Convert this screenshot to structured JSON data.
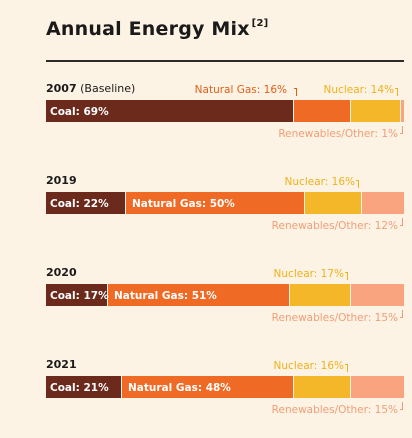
{
  "title": "Annual Energy Mix",
  "title_note": "[2]",
  "chart_data": {
    "type": "bar",
    "stacked": true,
    "orientation": "horizontal",
    "colors": {
      "coal": "#6b2a1c",
      "gas": "#ef6a24",
      "nuclear": "#f4b72a",
      "renewables": "#f9a47e",
      "text_on_bar": "#ffffff",
      "gas_text": "#e35f19",
      "nuclear_text": "#efb11c",
      "renewables_text": "#f09e79"
    },
    "rows": [
      {
        "year": "2007",
        "note": "(Baseline)",
        "values": {
          "coal": 69,
          "gas": 16,
          "nuclear": 14,
          "renewables": 1
        },
        "labels": {
          "coal": "Coal: 69%",
          "gas": "Natural Gas: 16%",
          "nuclear": "Nuclear: 14%",
          "renewables": "Renewables/Other: 1%"
        }
      },
      {
        "year": "2019",
        "note": "",
        "values": {
          "coal": 22,
          "gas": 50,
          "nuclear": 16,
          "renewables": 12
        },
        "labels": {
          "coal": "Coal: 22%",
          "gas": "Natural Gas: 50%",
          "nuclear": "Nuclear: 16%",
          "renewables": "Renewables/Other: 12%"
        }
      },
      {
        "year": "2020",
        "note": "",
        "values": {
          "coal": 17,
          "gas": 51,
          "nuclear": 17,
          "renewables": 15
        },
        "labels": {
          "coal": "Coal: 17%",
          "gas": "Natural Gas: 51%",
          "nuclear": "Nuclear: 17%",
          "renewables": "Renewables/Other: 15%"
        }
      },
      {
        "year": "2021",
        "note": "",
        "values": {
          "coal": 21,
          "gas": 48,
          "nuclear": 16,
          "renewables": 15
        },
        "labels": {
          "coal": "Coal: 21%",
          "gas": "Natural Gas: 48%",
          "nuclear": "Nuclear: 16%",
          "renewables": "Renewables/Other: 15%"
        }
      }
    ]
  }
}
